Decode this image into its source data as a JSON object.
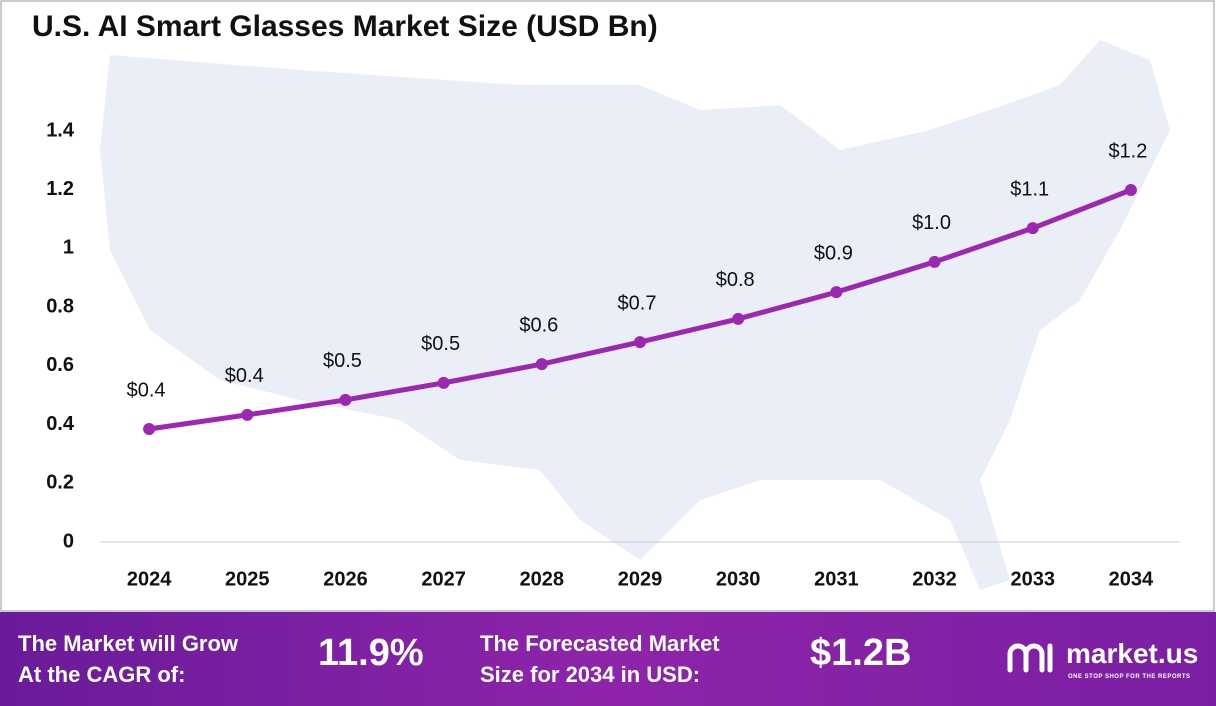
{
  "chart_data": {
    "type": "line",
    "title": "U.S. AI Smart Glasses Market Size (USD Bn)",
    "categories": [
      "2024",
      "2025",
      "2026",
      "2027",
      "2028",
      "2029",
      "2030",
      "2031",
      "2032",
      "2033",
      "2034"
    ],
    "values": [
      0.385,
      0.433,
      0.484,
      0.542,
      0.606,
      0.681,
      0.76,
      0.851,
      0.954,
      1.069,
      1.199
    ],
    "value_labels": [
      "$0.4",
      "$0.4",
      "$0.5",
      "$0.5",
      "$0.6",
      "$0.7",
      "$0.8",
      "$0.9",
      "$1.0",
      "$1.1",
      "$1.2"
    ],
    "color": "#9c27b0",
    "ylim": [
      0,
      1.4
    ],
    "yticks": [
      0,
      0.2,
      0.4,
      0.6,
      0.8,
      1,
      1.2,
      1.4
    ],
    "grid": false
  },
  "footer": {
    "cagr_label": [
      "The Market will Grow",
      "At the CAGR of:"
    ],
    "cagr_value": "11.9%",
    "forecast_label": [
      "The Forecasted Market",
      "Size for 2034 in USD:"
    ],
    "forecast_value": "$1.2B",
    "logo": "market.us",
    "tagline": "ONE STOP SHOP FOR THE REPORTS"
  }
}
